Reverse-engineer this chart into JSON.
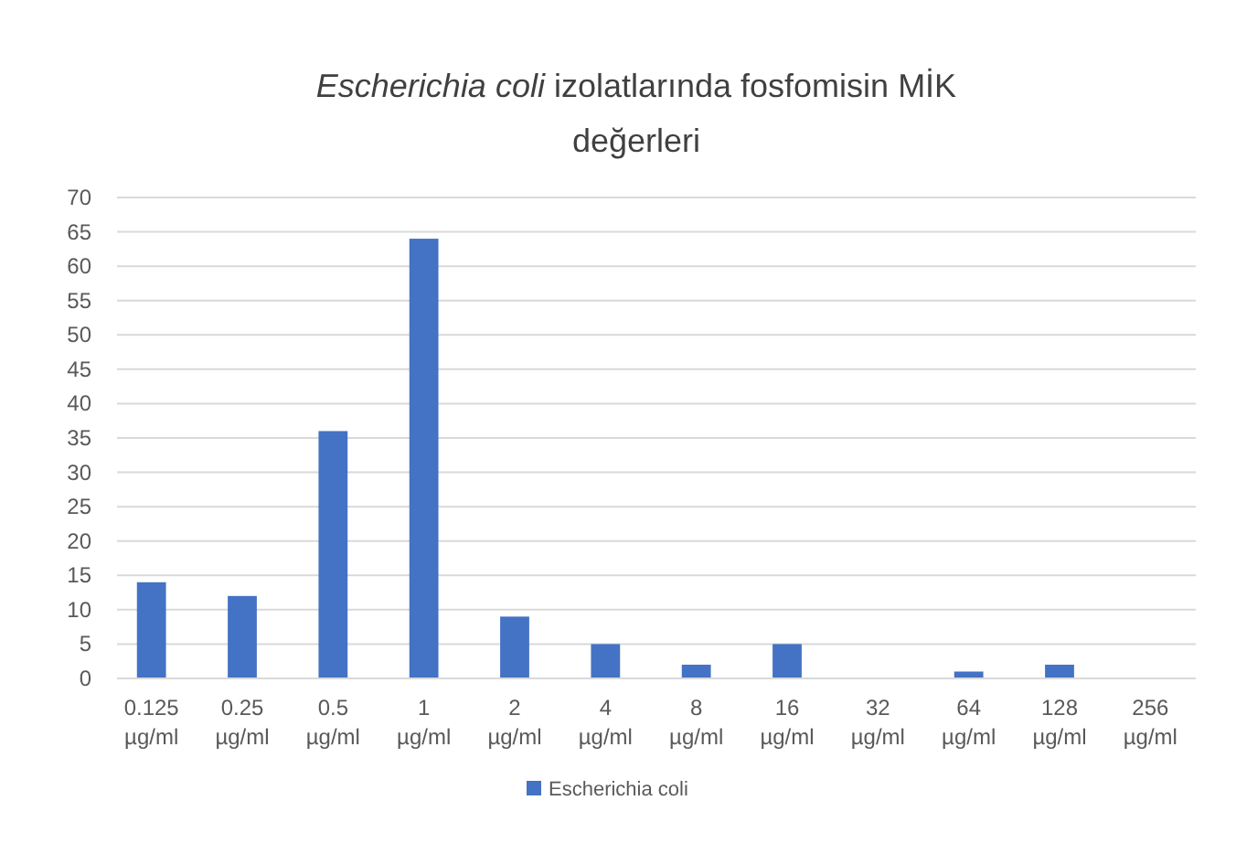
{
  "chart_data": {
    "type": "bar",
    "title": "Escherichia coli izolatlarında fosfomisin MİK değerleri",
    "categories": [
      "0.125 µg/ml",
      "0.25 µg/ml",
      "0.5 µg/ml",
      "1 µg/ml",
      "2 µg/ml",
      "4 µg/ml",
      "8 µg/ml",
      "16 µg/ml",
      "32 µg/ml",
      "64 µg/ml",
      "128 µg/ml",
      "256 µg/ml"
    ],
    "series": [
      {
        "name": "Escherichia coli",
        "color": "#4472c4",
        "values": [
          14,
          12,
          36,
          64,
          9,
          5,
          2,
          5,
          0,
          1,
          2,
          0
        ]
      }
    ],
    "ylim": [
      0,
      70
    ],
    "yticks": [
      0,
      5,
      10,
      15,
      20,
      25,
      30,
      35,
      40,
      45,
      50,
      55,
      60,
      65,
      70
    ],
    "grid": "y",
    "legend": "bottom"
  }
}
